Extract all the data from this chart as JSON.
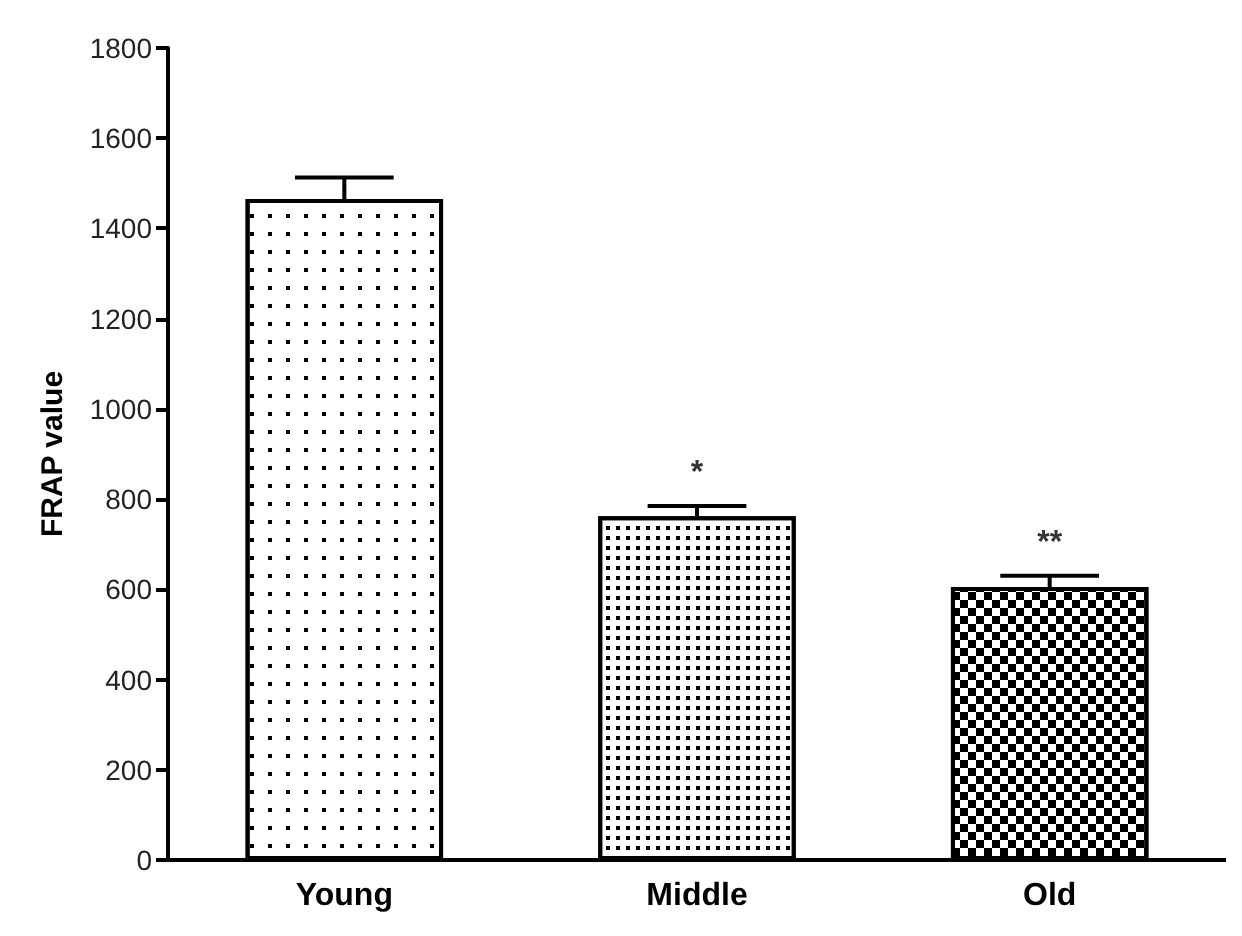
{
  "chart_data": {
    "type": "bar",
    "ylabel": "FRAP value",
    "categories": [
      "Young",
      "Middle",
      "Old"
    ],
    "values": [
      1465,
      762,
      605
    ],
    "errors": [
      48,
      23,
      25
    ],
    "color": "#ffffff",
    "ylim": [
      0,
      1800
    ],
    "yticks": [
      0,
      200,
      400,
      600,
      800,
      1000,
      1200,
      1400,
      1600,
      1800
    ],
    "grid": false,
    "annotations": [
      {
        "text": "*",
        "x": "Middle",
        "y": 800
      },
      {
        "text": "**",
        "x": "Old",
        "y": 645
      }
    ]
  }
}
